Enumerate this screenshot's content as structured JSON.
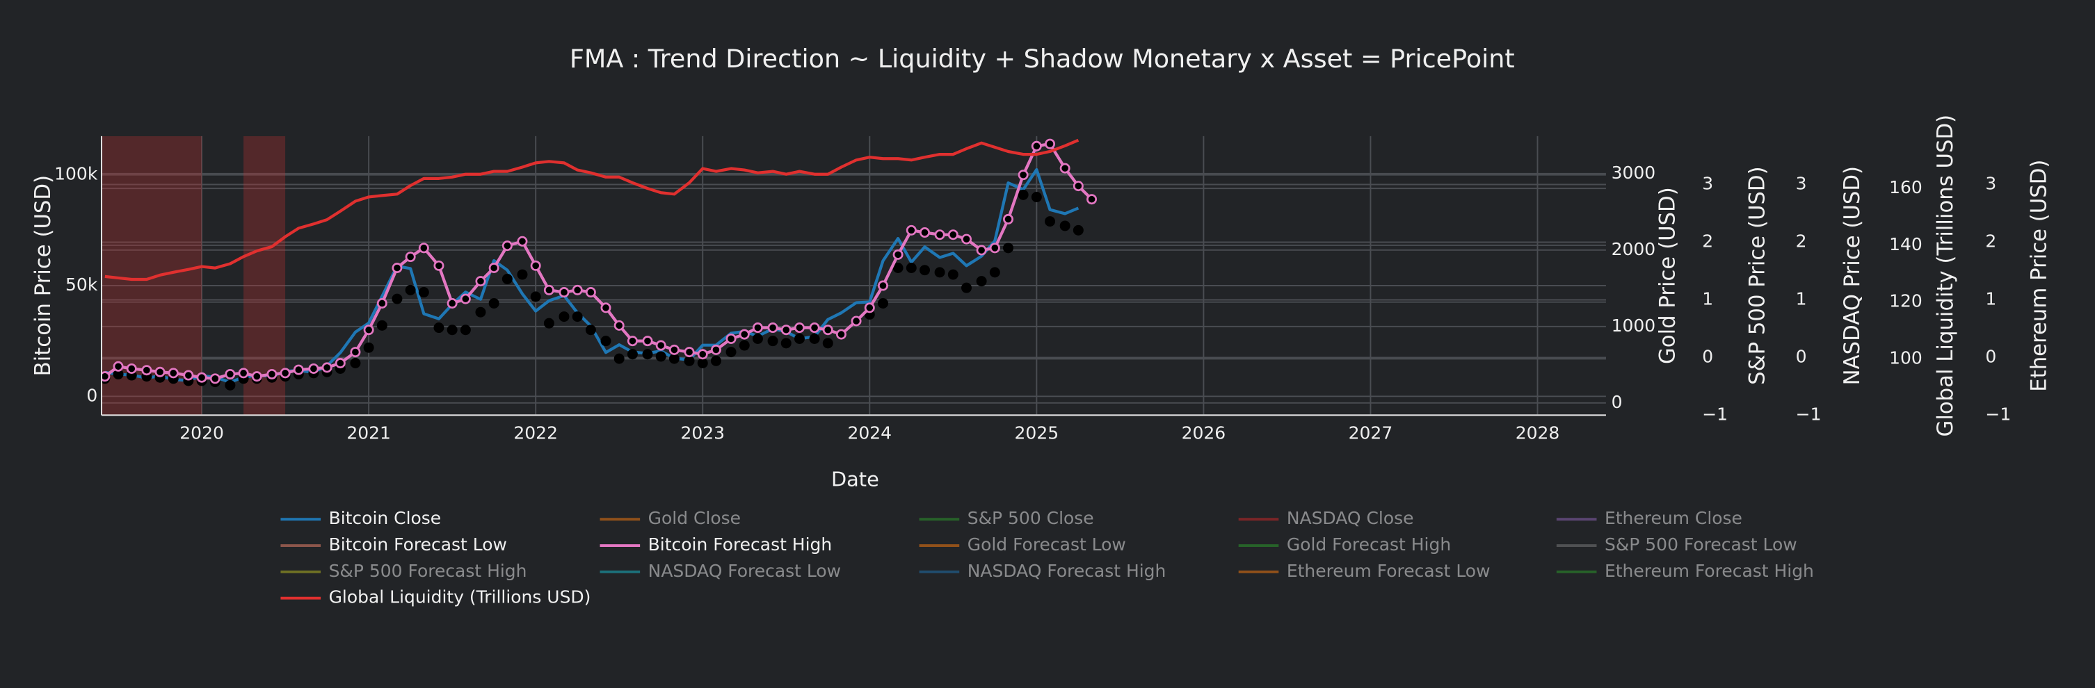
{
  "chart_data": {
    "type": "line",
    "title": "FMA : Trend Direction ~ Liquidity + Shadow Monetary x Asset = PricePoint",
    "xlabel": "Date",
    "x": [
      2019.42,
      2019.5,
      2019.58,
      2019.67,
      2019.75,
      2019.83,
      2019.92,
      2020.0,
      2020.08,
      2020.17,
      2020.25,
      2020.33,
      2020.42,
      2020.5,
      2020.58,
      2020.67,
      2020.75,
      2020.83,
      2020.92,
      2021.0,
      2021.08,
      2021.17,
      2021.25,
      2021.33,
      2021.42,
      2021.5,
      2021.58,
      2021.67,
      2021.75,
      2021.83,
      2021.92,
      2022.0,
      2022.08,
      2022.17,
      2022.25,
      2022.33,
      2022.42,
      2022.5,
      2022.58,
      2022.67,
      2022.75,
      2022.83,
      2022.92,
      2023.0,
      2023.08,
      2023.17,
      2023.25,
      2023.33,
      2023.42,
      2023.5,
      2023.58,
      2023.67,
      2023.75,
      2023.83,
      2023.92,
      2024.0,
      2024.08,
      2024.17,
      2024.25,
      2024.33,
      2024.42,
      2024.5,
      2024.58,
      2024.67,
      2024.75,
      2024.83,
      2024.92,
      2025.0,
      2025.08,
      2025.17,
      2025.25,
      2025.33
    ],
    "xlim": [
      2019.4,
      2028.41
    ],
    "xticks": [
      2020,
      2021,
      2022,
      2023,
      2024,
      2025,
      2026,
      2027,
      2028
    ],
    "ylabel": "Bitcoin Price (USD)",
    "ylim": [
      -8500,
      117500
    ],
    "yticks": [
      0,
      {
        "value": 50000,
        "label": "50k"
      },
      {
        "value": 100000,
        "label": "100k"
      }
    ],
    "y2label": "Gold Price (USD)",
    "y2lim": [
      -160,
      3490
    ],
    "y2ticks": [
      0,
      1000,
      2000,
      3000
    ],
    "y3label": "S&P 500 Price (USD)",
    "y3lim": [
      -1,
      3.84
    ],
    "y3ticks": [
      {
        "value": -1,
        "label": "−1"
      },
      0,
      1,
      2,
      3
    ],
    "y4label": "NASDAQ Price (USD)",
    "y4lim": [
      -1,
      3.84
    ],
    "y4ticks": [
      {
        "value": -1,
        "label": "−1"
      },
      0,
      1,
      2,
      3
    ],
    "y5label": "Global Liquidity (Trillions USD)",
    "y5lim": [
      80.2,
      178.4
    ],
    "y5ticks": [
      100,
      120,
      140,
      160
    ],
    "y6label": "Ethereum Price (USD)",
    "y6lim": [
      -1,
      3.84
    ],
    "y6ticks": [
      {
        "value": -1,
        "label": "−1"
      },
      0,
      1,
      2,
      3
    ],
    "grid": true,
    "shaded_regions": {
      "color": "#c83232",
      "ranges": [
        [
          2019.4,
          2020.0
        ],
        [
          2020.25,
          2020.5
        ]
      ]
    },
    "series": [
      {
        "name": "Bitcoin Close",
        "color": "#1f77b4",
        "axis": "y",
        "mode": "lines",
        "visible": true,
        "values": [
          10800,
          10000,
          9600,
          8300,
          9200,
          7600,
          7200,
          9300,
          8600,
          6400,
          8600,
          9500,
          9100,
          11300,
          11700,
          10800,
          13800,
          19700,
          29000,
          33100,
          45200,
          58800,
          57700,
          37300,
          35000,
          41500,
          47100,
          43800,
          61300,
          57000,
          46300,
          38500,
          43200,
          45500,
          37700,
          31800,
          19800,
          23300,
          20000,
          19400,
          20500,
          17200,
          16500,
          23100,
          23100,
          28500,
          29300,
          27200,
          30500,
          29200,
          26000,
          27000,
          34700,
          37700,
          42300,
          42600,
          61200,
          71300,
          60600,
          67500,
          62700,
          64600,
          59000,
          63300,
          70200,
          96400,
          93400,
          102400,
          84300,
          82500,
          85000,
          null
        ]
      },
      {
        "name": "Gold Close",
        "color": "#ff7f0e",
        "axis": "y2",
        "visible": false
      },
      {
        "name": "S&P 500 Close",
        "color": "#2ca02c",
        "axis": "y3",
        "visible": false
      },
      {
        "name": "NASDAQ Close",
        "color": "#d62728",
        "axis": "y4",
        "visible": false
      },
      {
        "name": "Ethereum Close",
        "color": "#9467bd",
        "axis": "y6",
        "visible": false
      },
      {
        "name": "Bitcoin Forecast Low",
        "color": "#8c564b",
        "marker_color": "#000000",
        "axis": "y",
        "mode": "markers",
        "visible": true,
        "values": [
          8000,
          10000,
          9500,
          9000,
          8500,
          8000,
          7000,
          7000,
          6500,
          5000,
          8000,
          8000,
          8500,
          9000,
          10000,
          10500,
          11000,
          12500,
          15000,
          22000,
          32000,
          44000,
          48000,
          47000,
          31000,
          30000,
          30000,
          38000,
          42000,
          53000,
          55000,
          45000,
          33000,
          36000,
          36000,
          30000,
          25000,
          17000,
          19000,
          19000,
          18000,
          17000,
          16000,
          15000,
          16000,
          20000,
          23000,
          26000,
          25000,
          24000,
          26000,
          26000,
          24000,
          28000,
          34000,
          37000,
          42000,
          58000,
          58000,
          57000,
          56000,
          55000,
          49000,
          52000,
          56000,
          67000,
          91000,
          90000,
          79000,
          77000,
          75000,
          null
        ]
      },
      {
        "name": "Bitcoin Forecast High",
        "color": "#e377c2",
        "marker_color": "#000000",
        "axis": "y",
        "mode": "lines+markers",
        "visible": true,
        "values": [
          9000,
          13500,
          12500,
          11800,
          11000,
          10500,
          9500,
          8500,
          8000,
          10000,
          10500,
          9000,
          10000,
          10500,
          12000,
          12500,
          13000,
          15000,
          20000,
          30000,
          42000,
          58000,
          63000,
          67000,
          59000,
          42000,
          44000,
          52000,
          58000,
          68000,
          70000,
          59000,
          48000,
          47000,
          48000,
          47000,
          40000,
          32000,
          25000,
          25000,
          23000,
          21000,
          20000,
          19000,
          21000,
          26000,
          28000,
          31000,
          31000,
          30000,
          31000,
          31000,
          30000,
          28000,
          34000,
          40000,
          50000,
          64000,
          75000,
          74000,
          73000,
          73000,
          71000,
          66000,
          67000,
          80000,
          100000,
          113000,
          114000,
          103000,
          95000,
          89000
        ]
      },
      {
        "name": "Gold Forecast Low",
        "color": "#ff7f0e",
        "axis": "y2",
        "visible": false
      },
      {
        "name": "Gold Forecast High",
        "color": "#2ca02c",
        "axis": "y2",
        "visible": false
      },
      {
        "name": "S&P 500 Forecast Low",
        "color": "#7f7f7f",
        "axis": "y3",
        "visible": false
      },
      {
        "name": "S&P 500 Forecast High",
        "color": "#bcbd22",
        "axis": "y3",
        "visible": false
      },
      {
        "name": "NASDAQ Forecast Low",
        "color": "#17becf",
        "axis": "y4",
        "visible": false
      },
      {
        "name": "NASDAQ Forecast High",
        "color": "#1f77b4",
        "axis": "y4",
        "visible": false
      },
      {
        "name": "Ethereum Forecast Low",
        "color": "#ff7f0e",
        "axis": "y6",
        "visible": false
      },
      {
        "name": "Ethereum Forecast High",
        "color": "#2ca02c",
        "axis": "y6",
        "visible": false
      },
      {
        "name": "Global Liquidity (Trillions USD)",
        "color": "#e0302f",
        "axis": "y5",
        "mode": "lines",
        "visible": true,
        "values": [
          129,
          128.5,
          128,
          128,
          129.5,
          130.5,
          131.5,
          132.5,
          132,
          133.5,
          136,
          138,
          139.5,
          143,
          146,
          147.5,
          149,
          152,
          155.5,
          157,
          157.5,
          158,
          161,
          163.5,
          163.5,
          164,
          165,
          165,
          166,
          166,
          167.5,
          169,
          169.5,
          169,
          166.5,
          165.5,
          164,
          164,
          162,
          160,
          158.5,
          158,
          162,
          167,
          166,
          167,
          166.5,
          165.5,
          166,
          165,
          166,
          165,
          165,
          167.5,
          170,
          171,
          170.5,
          170.5,
          170,
          171,
          172,
          172,
          174,
          176,
          174.5,
          173,
          172,
          172,
          173,
          175,
          177,
          null
        ]
      }
    ]
  }
}
